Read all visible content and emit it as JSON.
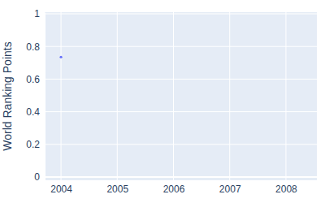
{
  "chart_data": {
    "type": "scatter",
    "y_label": "World Ranking Points",
    "x": [
      2004
    ],
    "values": [
      0.735
    ],
    "color": "#636efa",
    "marker": "circle",
    "xlim": [
      2003.71,
      2008.55
    ],
    "ylim": [
      -0.02,
      1.01
    ],
    "xticks": [
      2004,
      2005,
      2006,
      2007,
      2008
    ],
    "yticks": [
      0,
      0.2,
      0.4,
      0.6,
      0.8,
      1
    ],
    "grid": true
  }
}
